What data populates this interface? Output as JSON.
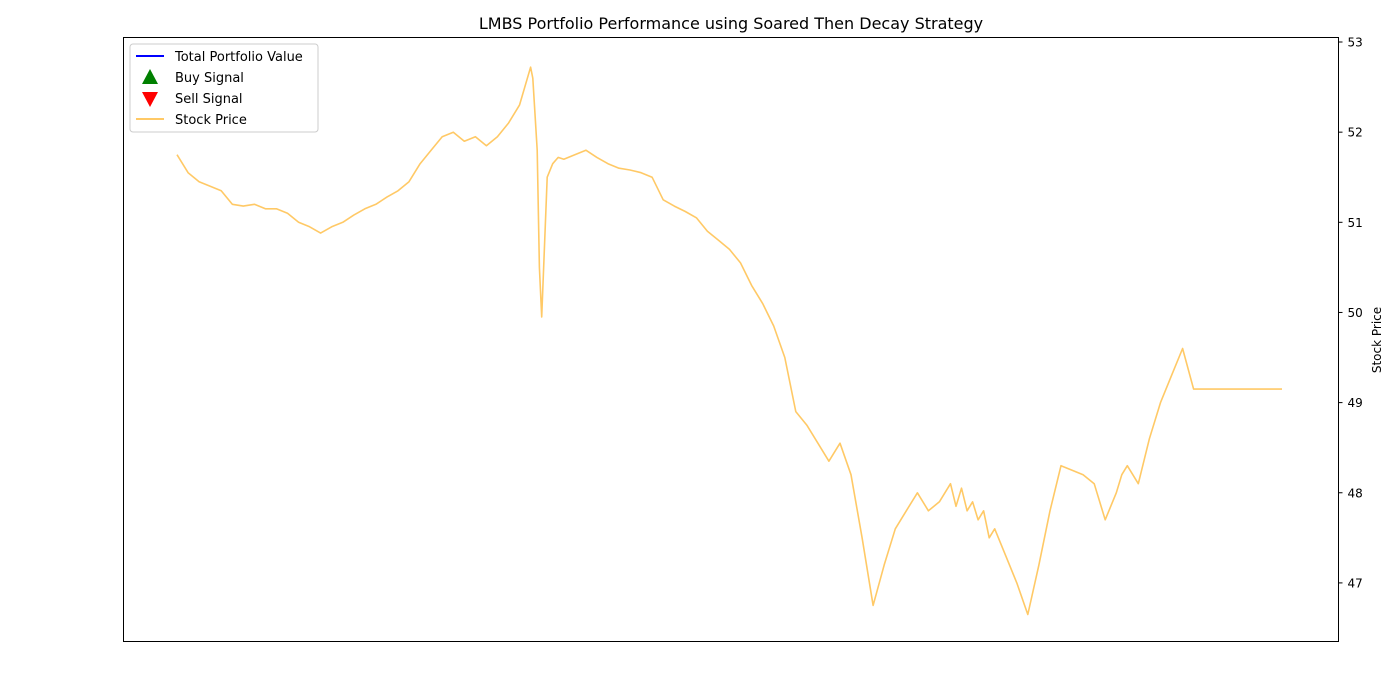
{
  "chart_data": {
    "type": "line",
    "title": "LMBS Portfolio Performance using Soared Then Decay Strategy",
    "xlabel": "",
    "ylabel_right": "Stock Price",
    "ylim_right": [
      46.35,
      53.05
    ],
    "yticks_right": [
      47,
      48,
      49,
      50,
      51,
      52,
      53
    ],
    "x_index_range": [
      0,
      1000
    ],
    "grid": false,
    "legend_placement": "top-left",
    "legend": [
      {
        "label": "Total Portfolio Value",
        "marker": "line",
        "color": "#0000ff"
      },
      {
        "label": "Buy Signal",
        "marker": "triangle-up",
        "color": "#008000"
      },
      {
        "label": "Sell Signal",
        "marker": "triangle-down",
        "color": "#ff0000"
      },
      {
        "label": "Stock Price",
        "marker": "line",
        "color": "#ffa500"
      }
    ],
    "series": [
      {
        "name": "Stock Price",
        "color": "#ffa500",
        "opacity": 0.6,
        "x": [
          0,
          10,
          20,
          30,
          40,
          50,
          60,
          70,
          80,
          90,
          100,
          110,
          120,
          130,
          140,
          150,
          160,
          170,
          180,
          190,
          200,
          210,
          220,
          230,
          240,
          250,
          260,
          270,
          280,
          290,
          300,
          310,
          320,
          322,
          324,
          326,
          328,
          330,
          335,
          340,
          345,
          350,
          360,
          370,
          380,
          390,
          400,
          410,
          420,
          430,
          440,
          450,
          460,
          470,
          480,
          490,
          500,
          510,
          520,
          530,
          540,
          550,
          560,
          570,
          580,
          590,
          600,
          610,
          620,
          630,
          640,
          650,
          660,
          670,
          680,
          690,
          700,
          705,
          710,
          715,
          720,
          725,
          730,
          735,
          740,
          750,
          760,
          770,
          780,
          790,
          800,
          810,
          820,
          830,
          840,
          850,
          855,
          860,
          870,
          880,
          890,
          900,
          910,
          920,
          930,
          940,
          950,
          960,
          970,
          980,
          990,
          1000
        ],
        "values": [
          51.75,
          51.55,
          51.45,
          51.4,
          51.35,
          51.2,
          51.18,
          51.2,
          51.15,
          51.15,
          51.1,
          51.0,
          50.95,
          50.88,
          50.95,
          51.0,
          51.08,
          51.15,
          51.2,
          51.28,
          51.35,
          51.45,
          51.65,
          51.8,
          51.95,
          52.0,
          51.9,
          51.95,
          51.85,
          51.95,
          52.1,
          52.3,
          52.72,
          52.6,
          52.2,
          51.8,
          50.5,
          49.95,
          51.5,
          51.65,
          51.72,
          51.7,
          51.75,
          51.8,
          51.72,
          51.65,
          51.6,
          51.58,
          51.55,
          51.5,
          51.25,
          51.18,
          51.12,
          51.05,
          50.9,
          50.8,
          50.7,
          50.55,
          50.3,
          50.1,
          49.85,
          49.5,
          48.9,
          48.75,
          48.55,
          48.35,
          48.55,
          48.2,
          47.5,
          46.75,
          47.2,
          47.6,
          47.8,
          48.0,
          47.8,
          47.9,
          48.1,
          47.85,
          48.05,
          47.8,
          47.9,
          47.7,
          47.8,
          47.5,
          47.6,
          47.3,
          47.0,
          46.65,
          47.2,
          47.8,
          48.3,
          48.25,
          48.2,
          48.1,
          47.7,
          48.0,
          48.2,
          48.3,
          48.1,
          48.6,
          49.0,
          49.3,
          49.6,
          49.15,
          49.15,
          49.15,
          49.15,
          49.15,
          49.15,
          49.15,
          49.15,
          49.15
        ]
      }
    ]
  }
}
